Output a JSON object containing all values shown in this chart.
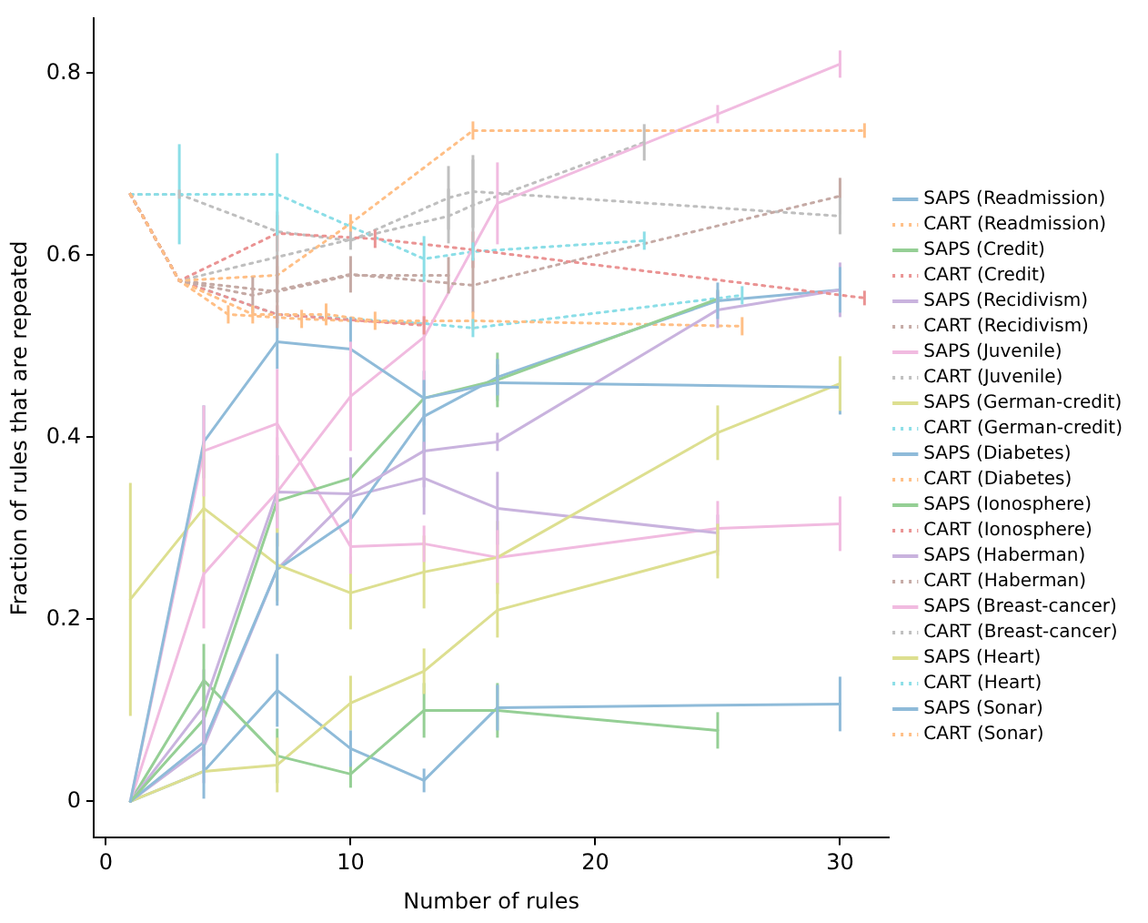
{
  "chart_data": {
    "type": "line",
    "xlabel": "Number of rules",
    "ylabel": "Fraction of rules that are repeated",
    "xlim": [
      -0.5,
      32
    ],
    "ylim": [
      -0.04,
      0.86
    ],
    "xticks": [
      0,
      10,
      20,
      30
    ],
    "yticks": [
      0,
      0.2,
      0.4,
      0.6,
      0.8
    ],
    "grid": false,
    "legend": "right",
    "marker": "none",
    "series": [
      {
        "name": "SAPS (Readmission)",
        "color": "#8fbbd9",
        "line_style": "solid",
        "x": [
          1,
          4,
          7,
          10,
          13,
          16,
          30
        ],
        "values": [
          0,
          0.395,
          0.505,
          0.497,
          0.443,
          0.46,
          0.455
        ],
        "errors": [
          null,
          0.04,
          0.03,
          0.035,
          0.03,
          0.02,
          0.03
        ]
      },
      {
        "name": "CART (Readmission)",
        "color": "#ffbf86",
        "line_style": "dotted",
        "x": [
          1,
          3,
          7,
          10,
          15,
          31
        ],
        "values": [
          0.667,
          0.572,
          0.578,
          0.635,
          0.737,
          0.737
        ],
        "errors": [
          null,
          null,
          0.01,
          0.01,
          0.01,
          0.008
        ]
      },
      {
        "name": "SAPS (Credit)",
        "color": "#95cf95",
        "line_style": "solid",
        "x": [
          1,
          4,
          7,
          10,
          13,
          16,
          25
        ],
        "values": [
          0,
          0.09,
          0.33,
          0.355,
          0.443,
          0.463,
          0.552
        ],
        "errors": [
          null,
          0.04,
          0.05,
          null,
          null,
          0.03,
          0.01
        ]
      },
      {
        "name": "CART (Credit)",
        "color": "#ea9393",
        "line_style": "dotted",
        "x": [
          1,
          3,
          7,
          11,
          15,
          31
        ],
        "values": [
          0.667,
          0.572,
          0.624,
          0.618,
          0.606,
          0.553
        ],
        "errors": [
          null,
          null,
          0.02,
          0.01,
          0.02,
          0.008
        ]
      },
      {
        "name": "SAPS (Recidivism)",
        "color": "#c9b3de",
        "line_style": "solid",
        "x": [
          1,
          4,
          7,
          10,
          13,
          16,
          25,
          30
        ],
        "values": [
          0,
          0.105,
          0.34,
          0.338,
          0.385,
          0.395,
          0.54,
          0.562
        ],
        "errors": [
          null,
          0.04,
          0.04,
          0.04,
          0.04,
          0.01,
          0.02,
          0.03
        ]
      },
      {
        "name": "CART (Recidivism)",
        "color": "#c5aaa5",
        "line_style": "dotted",
        "x": [
          1,
          3,
          6,
          10,
          15,
          30
        ],
        "values": [
          0.667,
          0.572,
          0.556,
          0.579,
          0.567,
          0.665
        ],
        "errors": [
          null,
          null,
          0.02,
          0.02,
          0.03,
          0.02
        ]
      },
      {
        "name": "SAPS (Juvenile)",
        "color": "#f1bbe0",
        "line_style": "solid",
        "x": [
          1,
          4,
          7,
          10,
          13,
          16,
          25,
          30
        ],
        "values": [
          0,
          0.25,
          0.34,
          0.445,
          0.51,
          0.657,
          0.755,
          0.81
        ],
        "errors": [
          null,
          0.06,
          0.06,
          0.06,
          0.06,
          0.045,
          0.01,
          0.015
        ]
      },
      {
        "name": "CART (Juvenile)",
        "color": "#bfbfbf",
        "line_style": "dotted",
        "x": [
          1,
          3,
          7,
          14,
          15,
          22
        ],
        "values": [
          0.667,
          0.572,
          0.598,
          0.643,
          0.655,
          0.724
        ],
        "errors": [
          null,
          null,
          0.05,
          0.03,
          0.05,
          0.02
        ]
      },
      {
        "name": "SAPS (German-credit)",
        "color": "#dddf90",
        "line_style": "solid",
        "x": [
          1,
          4,
          7,
          10,
          13,
          16,
          25,
          30
        ],
        "values": [
          0.222,
          0.322,
          0.26,
          0.229,
          0.252,
          0.268,
          0.405,
          0.459
        ],
        "errors": [
          0.128,
          0.07,
          0.04,
          0.04,
          0.04,
          0.04,
          0.03,
          0.03
        ]
      },
      {
        "name": "CART (German-credit)",
        "color": "#8bdee7",
        "line_style": "dotted",
        "x": [
          1,
          3,
          7,
          13,
          15,
          22
        ],
        "values": [
          0.667,
          0.667,
          0.667,
          0.596,
          0.604,
          0.616
        ],
        "errors": [
          null,
          0.055,
          0.045,
          0.025,
          0.01,
          0.01
        ]
      },
      {
        "name": "SAPS (Diabetes)",
        "color": "#8fbbd9",
        "line_style": "solid",
        "x": [
          1,
          4,
          7,
          10,
          13,
          16,
          25,
          30
        ],
        "values": [
          0,
          0.065,
          0.255,
          0.31,
          0.423,
          0.466,
          0.55,
          0.562
        ],
        "errors": [
          null,
          0.03,
          0.04,
          null,
          0.04,
          0.02,
          0.02,
          0.025
        ]
      },
      {
        "name": "CART (Diabetes)",
        "color": "#ffbf86",
        "line_style": "dotted",
        "x": [
          1,
          3,
          6,
          9,
          11,
          15,
          26
        ],
        "values": [
          0.667,
          0.572,
          0.535,
          0.535,
          0.528,
          0.528,
          0.522
        ],
        "errors": [
          null,
          null,
          0.01,
          0.012,
          0.01,
          0.01,
          0.01
        ]
      },
      {
        "name": "SAPS (Ionosphere)",
        "color": "#95cf95",
        "line_style": "solid",
        "x": [
          1,
          4,
          7,
          10,
          13,
          16,
          25
        ],
        "values": [
          0,
          0.133,
          0.05,
          0.03,
          0.1,
          0.1,
          0.078
        ],
        "errors": [
          null,
          0.04,
          0.03,
          0.015,
          0.03,
          0.03,
          0.02
        ]
      },
      {
        "name": "CART (Ionosphere)",
        "color": "#ea9393",
        "line_style": "dotted",
        "x": [
          1,
          3,
          7,
          13
        ],
        "values": [
          0.667,
          0.572,
          0.535,
          0.523
        ],
        "errors": [
          null,
          null,
          0.01,
          0.01
        ]
      },
      {
        "name": "SAPS (Haberman)",
        "color": "#c9b3de",
        "line_style": "solid",
        "x": [
          1,
          4,
          7,
          10,
          13,
          16,
          25
        ],
        "values": [
          0,
          0.06,
          0.255,
          0.335,
          0.355,
          0.322,
          0.295
        ],
        "errors": [
          null,
          0.04,
          null,
          0.04,
          0.04,
          0.04,
          0.02
        ]
      },
      {
        "name": "CART (Haberman)",
        "color": "#c5aaa5",
        "line_style": "dotted",
        "x": [
          1,
          3,
          7,
          10,
          14
        ],
        "values": [
          0.667,
          0.572,
          0.56,
          0.578,
          0.578
        ],
        "errors": [
          null,
          null,
          0.04,
          null,
          0.02
        ]
      },
      {
        "name": "SAPS (Breast-cancer)",
        "color": "#f1bbe0",
        "line_style": "solid",
        "x": [
          1,
          4,
          7,
          10,
          13,
          16,
          25,
          30
        ],
        "values": [
          0,
          0.385,
          0.415,
          0.28,
          0.283,
          0.268,
          0.3,
          0.305
        ],
        "errors": [
          null,
          0.05,
          0.06,
          0.03,
          0.02,
          0.03,
          0.03,
          0.03
        ]
      },
      {
        "name": "CART (Breast-cancer)",
        "color": "#bfbfbf",
        "line_style": "dotted",
        "x": [
          1,
          3,
          7,
          10,
          14,
          15,
          30
        ],
        "values": [
          0.667,
          0.667,
          0.626,
          0.616,
          0.663,
          0.67,
          0.643
        ],
        "errors": [
          null,
          0.005,
          null,
          0.01,
          0.035,
          0.04,
          0.02
        ]
      },
      {
        "name": "SAPS (Heart)",
        "color": "#dddf90",
        "line_style": "solid",
        "x": [
          1,
          4,
          7,
          10,
          13,
          16,
          25
        ],
        "values": [
          0,
          0.033,
          0.04,
          0.108,
          0.143,
          0.21,
          0.275
        ],
        "errors": [
          null,
          null,
          0.03,
          0.03,
          0.025,
          0.03,
          0.03
        ]
      },
      {
        "name": "CART (Heart)",
        "color": "#8bdee7",
        "line_style": "dotted",
        "x": [
          1,
          3,
          7,
          13,
          15,
          26
        ],
        "values": [
          0.667,
          0.572,
          0.535,
          0.525,
          0.52,
          0.556
        ],
        "errors": [
          null,
          null,
          null,
          null,
          0.01,
          0.01
        ]
      },
      {
        "name": "SAPS (Sonar)",
        "color": "#8fbbd9",
        "line_style": "solid",
        "x": [
          1,
          4,
          7,
          10,
          13,
          16,
          30
        ],
        "values": [
          0,
          0.033,
          0.122,
          0.058,
          0.023,
          0.103,
          0.107
        ],
        "errors": [
          null,
          0.03,
          0.04,
          0.02,
          0.013,
          0.025,
          0.03
        ]
      },
      {
        "name": "CART (Sonar)",
        "color": "#ffbf86",
        "line_style": "dotted",
        "x": [
          1,
          3,
          5,
          8,
          13
        ],
        "values": [
          0.667,
          0.572,
          0.535,
          0.53,
          0.525
        ],
        "errors": [
          null,
          null,
          0.01,
          0.01,
          null
        ]
      }
    ]
  }
}
